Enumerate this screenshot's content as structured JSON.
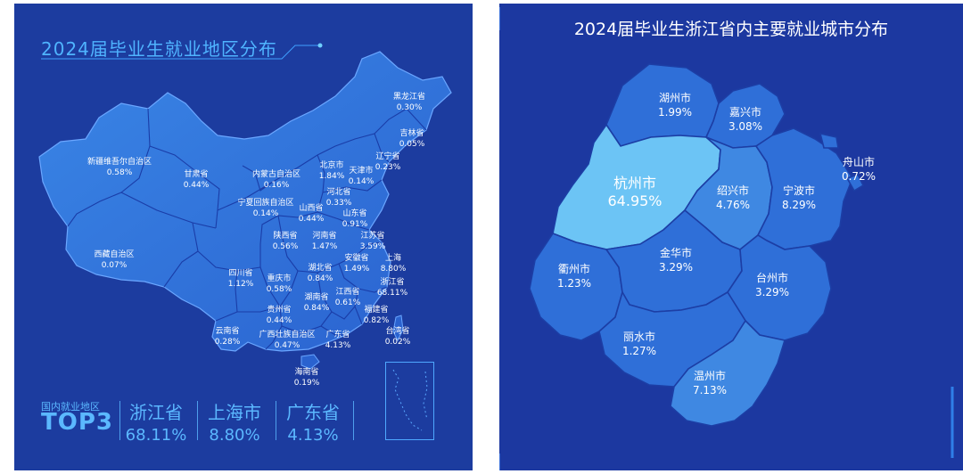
{
  "left_panel": {
    "title": "2024届毕业生就业地区分布",
    "top3_caption": "国内就业地区",
    "top3_title": "TOP3",
    "top3": [
      {
        "name": "浙江省",
        "pct": "68.11%"
      },
      {
        "name": "上海市",
        "pct": "8.80%"
      },
      {
        "name": "广东省",
        "pct": "4.13%"
      }
    ],
    "provinces": [
      {
        "name": "黑龙江省",
        "pct": "0.30%"
      },
      {
        "name": "吉林省",
        "pct": "0.05%"
      },
      {
        "name": "辽宁省",
        "pct": "0.23%"
      },
      {
        "name": "新疆维吾尔自治区",
        "pct": "0.58%"
      },
      {
        "name": "甘肃省",
        "pct": "0.44%"
      },
      {
        "name": "内蒙古自治区",
        "pct": "0.16%"
      },
      {
        "name": "北京市",
        "pct": "1.84%"
      },
      {
        "name": "天津市",
        "pct": "0.14%"
      },
      {
        "name": "河北省",
        "pct": "0.33%"
      },
      {
        "name": "宁夏回族自治区",
        "pct": "0.14%"
      },
      {
        "name": "山西省",
        "pct": "0.44%"
      },
      {
        "name": "山东省",
        "pct": "0.91%"
      },
      {
        "name": "西藏自治区",
        "pct": "0.07%"
      },
      {
        "name": "陕西省",
        "pct": "0.56%"
      },
      {
        "name": "河南省",
        "pct": "1.47%"
      },
      {
        "name": "江苏省",
        "pct": "3.59%"
      },
      {
        "name": "安徽省",
        "pct": "1.49%"
      },
      {
        "name": "上海",
        "pct": "8.80%"
      },
      {
        "name": "四川省",
        "pct": "1.12%"
      },
      {
        "name": "湖北省",
        "pct": "0.84%"
      },
      {
        "name": "重庆市",
        "pct": "0.58%"
      },
      {
        "name": "浙江省",
        "pct": "68.11%"
      },
      {
        "name": "江西省",
        "pct": "0.61%"
      },
      {
        "name": "湖南省",
        "pct": "0.84%"
      },
      {
        "name": "贵州省",
        "pct": "0.44%"
      },
      {
        "name": "福建省",
        "pct": "0.82%"
      },
      {
        "name": "云南省",
        "pct": "0.28%"
      },
      {
        "name": "广西壮族自治区",
        "pct": "0.47%"
      },
      {
        "name": "广东省",
        "pct": "4.13%"
      },
      {
        "name": "台湾省",
        "pct": "0.02%"
      },
      {
        "name": "海南省",
        "pct": "0.19%"
      }
    ]
  },
  "right_panel": {
    "title": "2024届毕业生浙江省内主要就业城市分布",
    "cities": [
      {
        "name": "湖州市",
        "pct": "1.99%"
      },
      {
        "name": "嘉兴市",
        "pct": "3.08%"
      },
      {
        "name": "杭州市",
        "pct": "64.95%"
      },
      {
        "name": "舟山市",
        "pct": "0.72%"
      },
      {
        "name": "绍兴市",
        "pct": "4.76%"
      },
      {
        "name": "宁波市",
        "pct": "8.29%"
      },
      {
        "name": "金华市",
        "pct": "3.29%"
      },
      {
        "name": "衢州市",
        "pct": "1.23%"
      },
      {
        "name": "台州市",
        "pct": "3.29%"
      },
      {
        "name": "丽水市",
        "pct": "1.27%"
      },
      {
        "name": "温州市",
        "pct": "7.13%"
      }
    ]
  },
  "colors": {
    "panel_bg": "#1c3c9f",
    "map_fill": "#2f6fd8",
    "hangzhou_fill": "#6cc4f5",
    "accent_text": "#5bb8ff"
  }
}
